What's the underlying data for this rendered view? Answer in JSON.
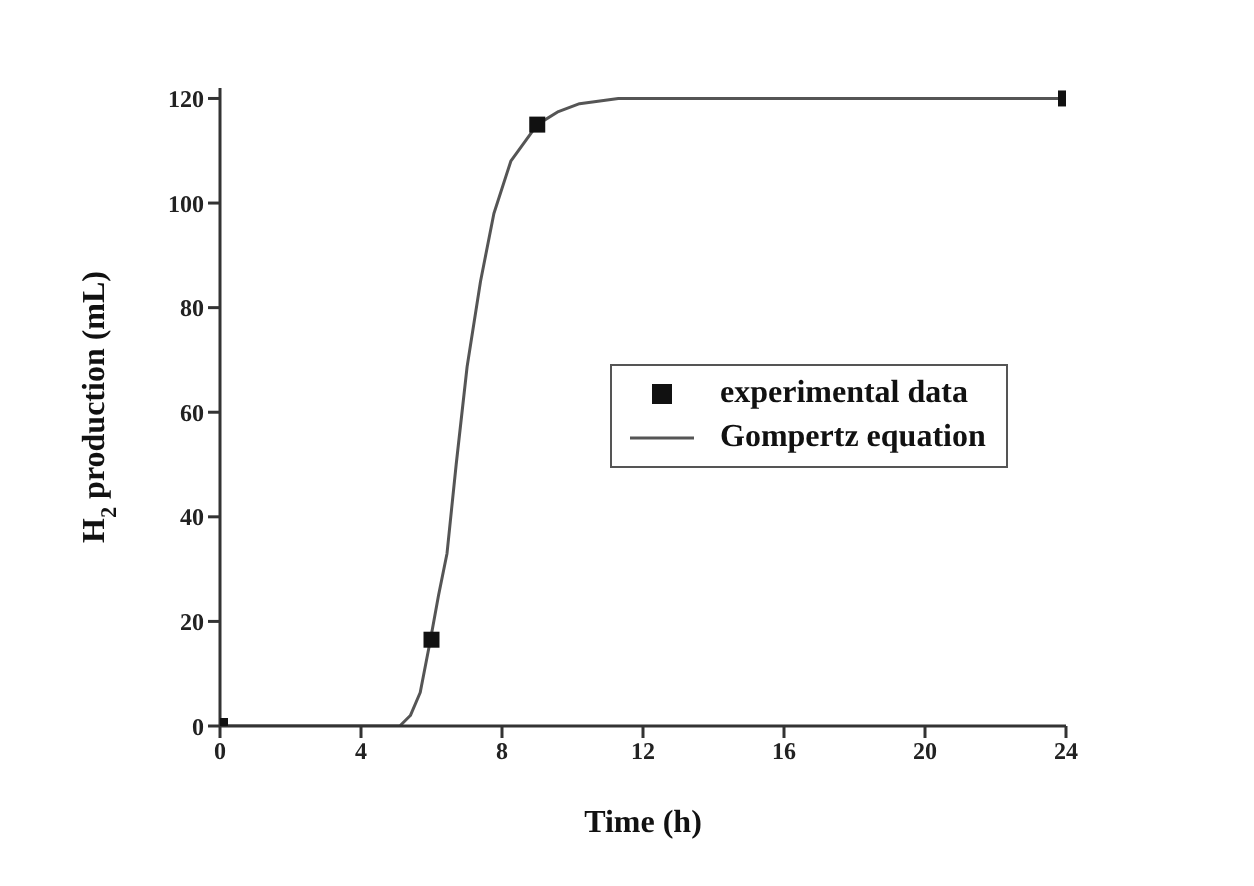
{
  "chart_data": {
    "type": "scatter",
    "xlabel": "Time (h)",
    "ylabel": "H$_{2}$ production (mL)",
    "xlim": [
      0,
      24
    ],
    "xticks": [
      0,
      4,
      8,
      12,
      16,
      20,
      24
    ],
    "ylim": [
      0,
      122
    ],
    "yticks": [
      0,
      20,
      40,
      60,
      80,
      100,
      120
    ],
    "grid": false,
    "legend": "right",
    "line_style": "solid",
    "series": [
      {
        "name": "experimental data",
        "marker": "square",
        "color": "#111111",
        "x": [
          0,
          6,
          9,
          24
        ],
        "values": [
          0,
          16.5,
          115,
          120
        ]
      },
      {
        "name": "Gompertz equation",
        "type": "line",
        "marker": "none",
        "color": "#555555",
        "x": [
          0,
          2,
          4,
          5.1,
          5.4,
          5.68,
          5.97,
          6.2,
          6.44,
          6.7,
          7.01,
          7.39,
          7.77,
          8.25,
          9,
          9.6,
          10.2,
          11.3,
          12,
          16,
          20,
          24
        ],
        "values": [
          0,
          0,
          0,
          0,
          2,
          6.4,
          16.5,
          25,
          33,
          50,
          68.7,
          85,
          98,
          108,
          115,
          117.5,
          119,
          120,
          120,
          120,
          120,
          120
        ]
      }
    ]
  }
}
